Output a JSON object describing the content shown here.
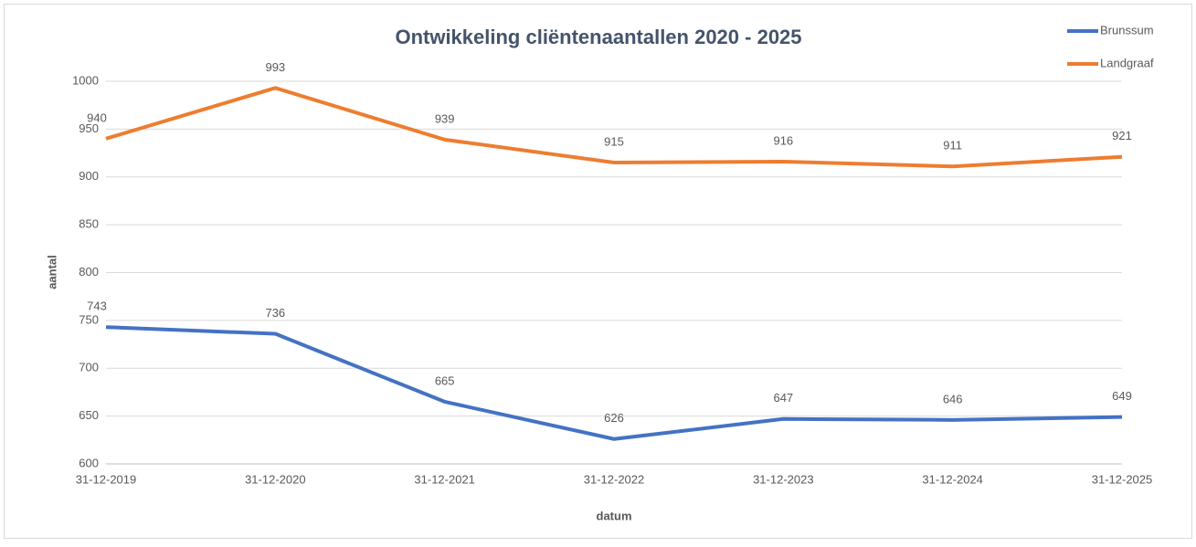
{
  "chart_data": {
    "type": "line",
    "title": "Ontwikkeling cliëntenaantallen 2020 - 2025",
    "x_label": "datum",
    "y_label": "aantal",
    "categories": [
      "31-12-2019",
      "31-12-2020",
      "31-12-2021",
      "31-12-2022",
      "31-12-2023",
      "31-12-2024",
      "31-12-2025"
    ],
    "series": [
      {
        "name": "Brunssum",
        "color": "#4472c4",
        "values": [
          743,
          736,
          665,
          626,
          647,
          646,
          649
        ]
      },
      {
        "name": "Landgraaf",
        "color": "#ed7d31",
        "values": [
          940,
          993,
          939,
          915,
          916,
          911,
          921
        ]
      }
    ],
    "ylim": [
      600,
      1000
    ],
    "yticks": [
      600,
      650,
      700,
      750,
      800,
      850,
      900,
      950,
      1000
    ],
    "grid": true,
    "legend": "top-right"
  }
}
